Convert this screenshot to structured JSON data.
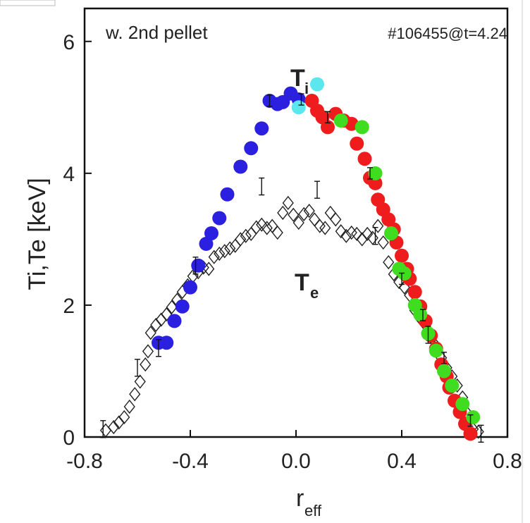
{
  "chart_data": {
    "type": "scatter",
    "annotation_left": "w. 2nd pellet",
    "annotation_right": "#106455@t=4.24",
    "xlabel_main": "r",
    "xlabel_sub": "eff",
    "ylabel": "Ti,Te [keV]",
    "xlim": [
      -0.8,
      0.8
    ],
    "ylim": [
      0,
      6.5
    ],
    "x_ticks": [
      -0.8,
      -0.4,
      0.0,
      0.4,
      0.8
    ],
    "x_tick_labels": [
      "-0.8",
      "-0.4",
      "0.0",
      "0.4",
      "0.8"
    ],
    "y_ticks": [
      0,
      2,
      4,
      6
    ],
    "y_tick_labels": [
      "0",
      "2",
      "4",
      "6"
    ],
    "label_ti_main": "T",
    "label_ti_sub": "i",
    "label_te_main": "T",
    "label_te_sub": "e",
    "colors": {
      "blue": "#2b1fe0",
      "cyan": "#5ce6ee",
      "red": "#ee1c1c",
      "green": "#3fdc1f",
      "te_marker": "#222222"
    },
    "ti_series": [
      {
        "color": "blue",
        "points": [
          [
            -0.52,
            1.43
          ],
          [
            -0.49,
            1.43
          ],
          [
            -0.46,
            1.76
          ],
          [
            -0.43,
            1.98
          ],
          [
            -0.4,
            2.27
          ],
          [
            -0.37,
            2.6
          ],
          [
            -0.34,
            2.93
          ],
          [
            -0.32,
            3.09
          ],
          [
            -0.29,
            3.32
          ],
          [
            -0.26,
            3.68
          ],
          [
            -0.21,
            4.1
          ],
          [
            -0.17,
            4.38
          ],
          [
            -0.13,
            4.68
          ],
          [
            -0.1,
            5.1
          ],
          [
            -0.07,
            5.05
          ],
          [
            -0.05,
            5.08
          ],
          [
            -0.02,
            5.21
          ],
          [
            0.01,
            5.12
          ]
        ]
      },
      {
        "color": "cyan",
        "points": [
          [
            0.01,
            5.0
          ],
          [
            0.08,
            5.35
          ]
        ]
      },
      {
        "color": "red",
        "points": [
          [
            0.06,
            5.1
          ],
          [
            0.08,
            4.95
          ],
          [
            0.1,
            4.85
          ],
          [
            0.12,
            4.7
          ],
          [
            0.15,
            4.9
          ],
          [
            0.18,
            4.8
          ],
          [
            0.21,
            4.75
          ],
          [
            0.23,
            4.45
          ],
          [
            0.26,
            4.22
          ],
          [
            0.28,
            3.93
          ],
          [
            0.3,
            3.85
          ],
          [
            0.31,
            3.6
          ],
          [
            0.33,
            3.45
          ],
          [
            0.35,
            3.3
          ],
          [
            0.37,
            3.15
          ],
          [
            0.38,
            2.95
          ],
          [
            0.4,
            2.75
          ],
          [
            0.42,
            2.55
          ],
          [
            0.43,
            2.4
          ],
          [
            0.45,
            2.2
          ],
          [
            0.47,
            1.98
          ],
          [
            0.49,
            1.76
          ],
          [
            0.51,
            1.54
          ],
          [
            0.53,
            1.34
          ],
          [
            0.55,
            1.1
          ],
          [
            0.57,
            0.92
          ],
          [
            0.58,
            0.75
          ],
          [
            0.6,
            0.55
          ],
          [
            0.62,
            0.38
          ],
          [
            0.64,
            0.2
          ],
          [
            0.66,
            0.05
          ]
        ]
      },
      {
        "color": "green",
        "points": [
          [
            0.17,
            4.8
          ],
          [
            0.25,
            4.7
          ],
          [
            0.3,
            4.0
          ],
          [
            0.36,
            3.09
          ],
          [
            0.39,
            2.55
          ],
          [
            0.41,
            2.48
          ],
          [
            0.45,
            2.0
          ],
          [
            0.47,
            1.86
          ],
          [
            0.5,
            1.57
          ],
          [
            0.53,
            1.31
          ],
          [
            0.56,
            1.0
          ],
          [
            0.59,
            0.78
          ],
          [
            0.63,
            0.5
          ],
          [
            0.67,
            0.3
          ]
        ]
      }
    ],
    "te_points": [
      [
        -0.72,
        0.1
      ],
      [
        -0.69,
        0.15
      ],
      [
        -0.67,
        0.22
      ],
      [
        -0.65,
        0.3
      ],
      [
        -0.63,
        0.46
      ],
      [
        -0.61,
        0.65
      ],
      [
        -0.59,
        0.84
      ],
      [
        -0.57,
        1.1
      ],
      [
        -0.56,
        1.3
      ],
      [
        -0.55,
        1.58
      ],
      [
        -0.53,
        1.7
      ],
      [
        -0.51,
        1.78
      ],
      [
        -0.49,
        1.86
      ],
      [
        -0.47,
        1.97
      ],
      [
        -0.45,
        2.08
      ],
      [
        -0.43,
        2.2
      ],
      [
        -0.41,
        2.3
      ],
      [
        -0.39,
        2.44
      ],
      [
        -0.37,
        2.5
      ],
      [
        -0.35,
        2.57
      ],
      [
        -0.33,
        2.55
      ],
      [
        -0.31,
        2.73
      ],
      [
        -0.29,
        2.78
      ],
      [
        -0.27,
        2.82
      ],
      [
        -0.25,
        2.86
      ],
      [
        -0.23,
        2.9
      ],
      [
        -0.21,
        3.0
      ],
      [
        -0.19,
        3.05
      ],
      [
        -0.17,
        3.08
      ],
      [
        -0.15,
        3.18
      ],
      [
        -0.13,
        3.22
      ],
      [
        -0.11,
        3.17
      ],
      [
        -0.09,
        3.2
      ],
      [
        -0.07,
        3.1
      ],
      [
        -0.05,
        3.4
      ],
      [
        -0.03,
        3.55
      ],
      [
        -0.01,
        3.37
      ],
      [
        0.01,
        3.25
      ],
      [
        0.03,
        3.38
      ],
      [
        0.05,
        3.43
      ],
      [
        0.07,
        3.3
      ],
      [
        0.09,
        3.2
      ],
      [
        0.11,
        3.17
      ],
      [
        0.13,
        3.4
      ],
      [
        0.15,
        3.3
      ],
      [
        0.17,
        3.12
      ],
      [
        0.19,
        3.05
      ],
      [
        0.21,
        3.1
      ],
      [
        0.23,
        3.08
      ],
      [
        0.25,
        3.0
      ],
      [
        0.27,
        3.08
      ],
      [
        0.29,
        3.02
      ],
      [
        0.31,
        3.2
      ],
      [
        0.33,
        2.95
      ],
      [
        0.35,
        2.65
      ],
      [
        0.37,
        2.47
      ],
      [
        0.39,
        2.35
      ],
      [
        0.41,
        2.27
      ],
      [
        0.43,
        2.15
      ],
      [
        0.45,
        1.92
      ],
      [
        0.47,
        1.8
      ],
      [
        0.49,
        1.7
      ],
      [
        0.51,
        1.52
      ],
      [
        0.53,
        1.38
      ],
      [
        0.55,
        1.2
      ],
      [
        0.57,
        1.05
      ],
      [
        0.59,
        0.92
      ],
      [
        0.61,
        0.78
      ],
      [
        0.63,
        0.6
      ],
      [
        0.65,
        0.35
      ],
      [
        0.67,
        0.12
      ],
      [
        0.69,
        0.08
      ]
    ],
    "te_error_points": [
      [
        -0.73,
        0.12
      ],
      [
        -0.6,
        1.05
      ],
      [
        -0.52,
        1.35
      ],
      [
        -0.38,
        2.6
      ],
      [
        -0.13,
        3.8
      ],
      [
        0.08,
        3.75
      ],
      [
        0.3,
        3.05
      ],
      [
        0.5,
        1.55
      ],
      [
        0.7,
        0.05
      ]
    ],
    "ti_error_points": [
      [
        -0.1,
        5.1
      ],
      [
        0.02,
        5.12
      ],
      [
        0.12,
        4.85
      ],
      [
        0.28,
        4.0
      ],
      [
        0.4,
        2.4
      ],
      [
        0.48,
        1.85
      ],
      [
        0.56,
        1.2
      ],
      [
        0.66,
        0.25
      ]
    ]
  }
}
